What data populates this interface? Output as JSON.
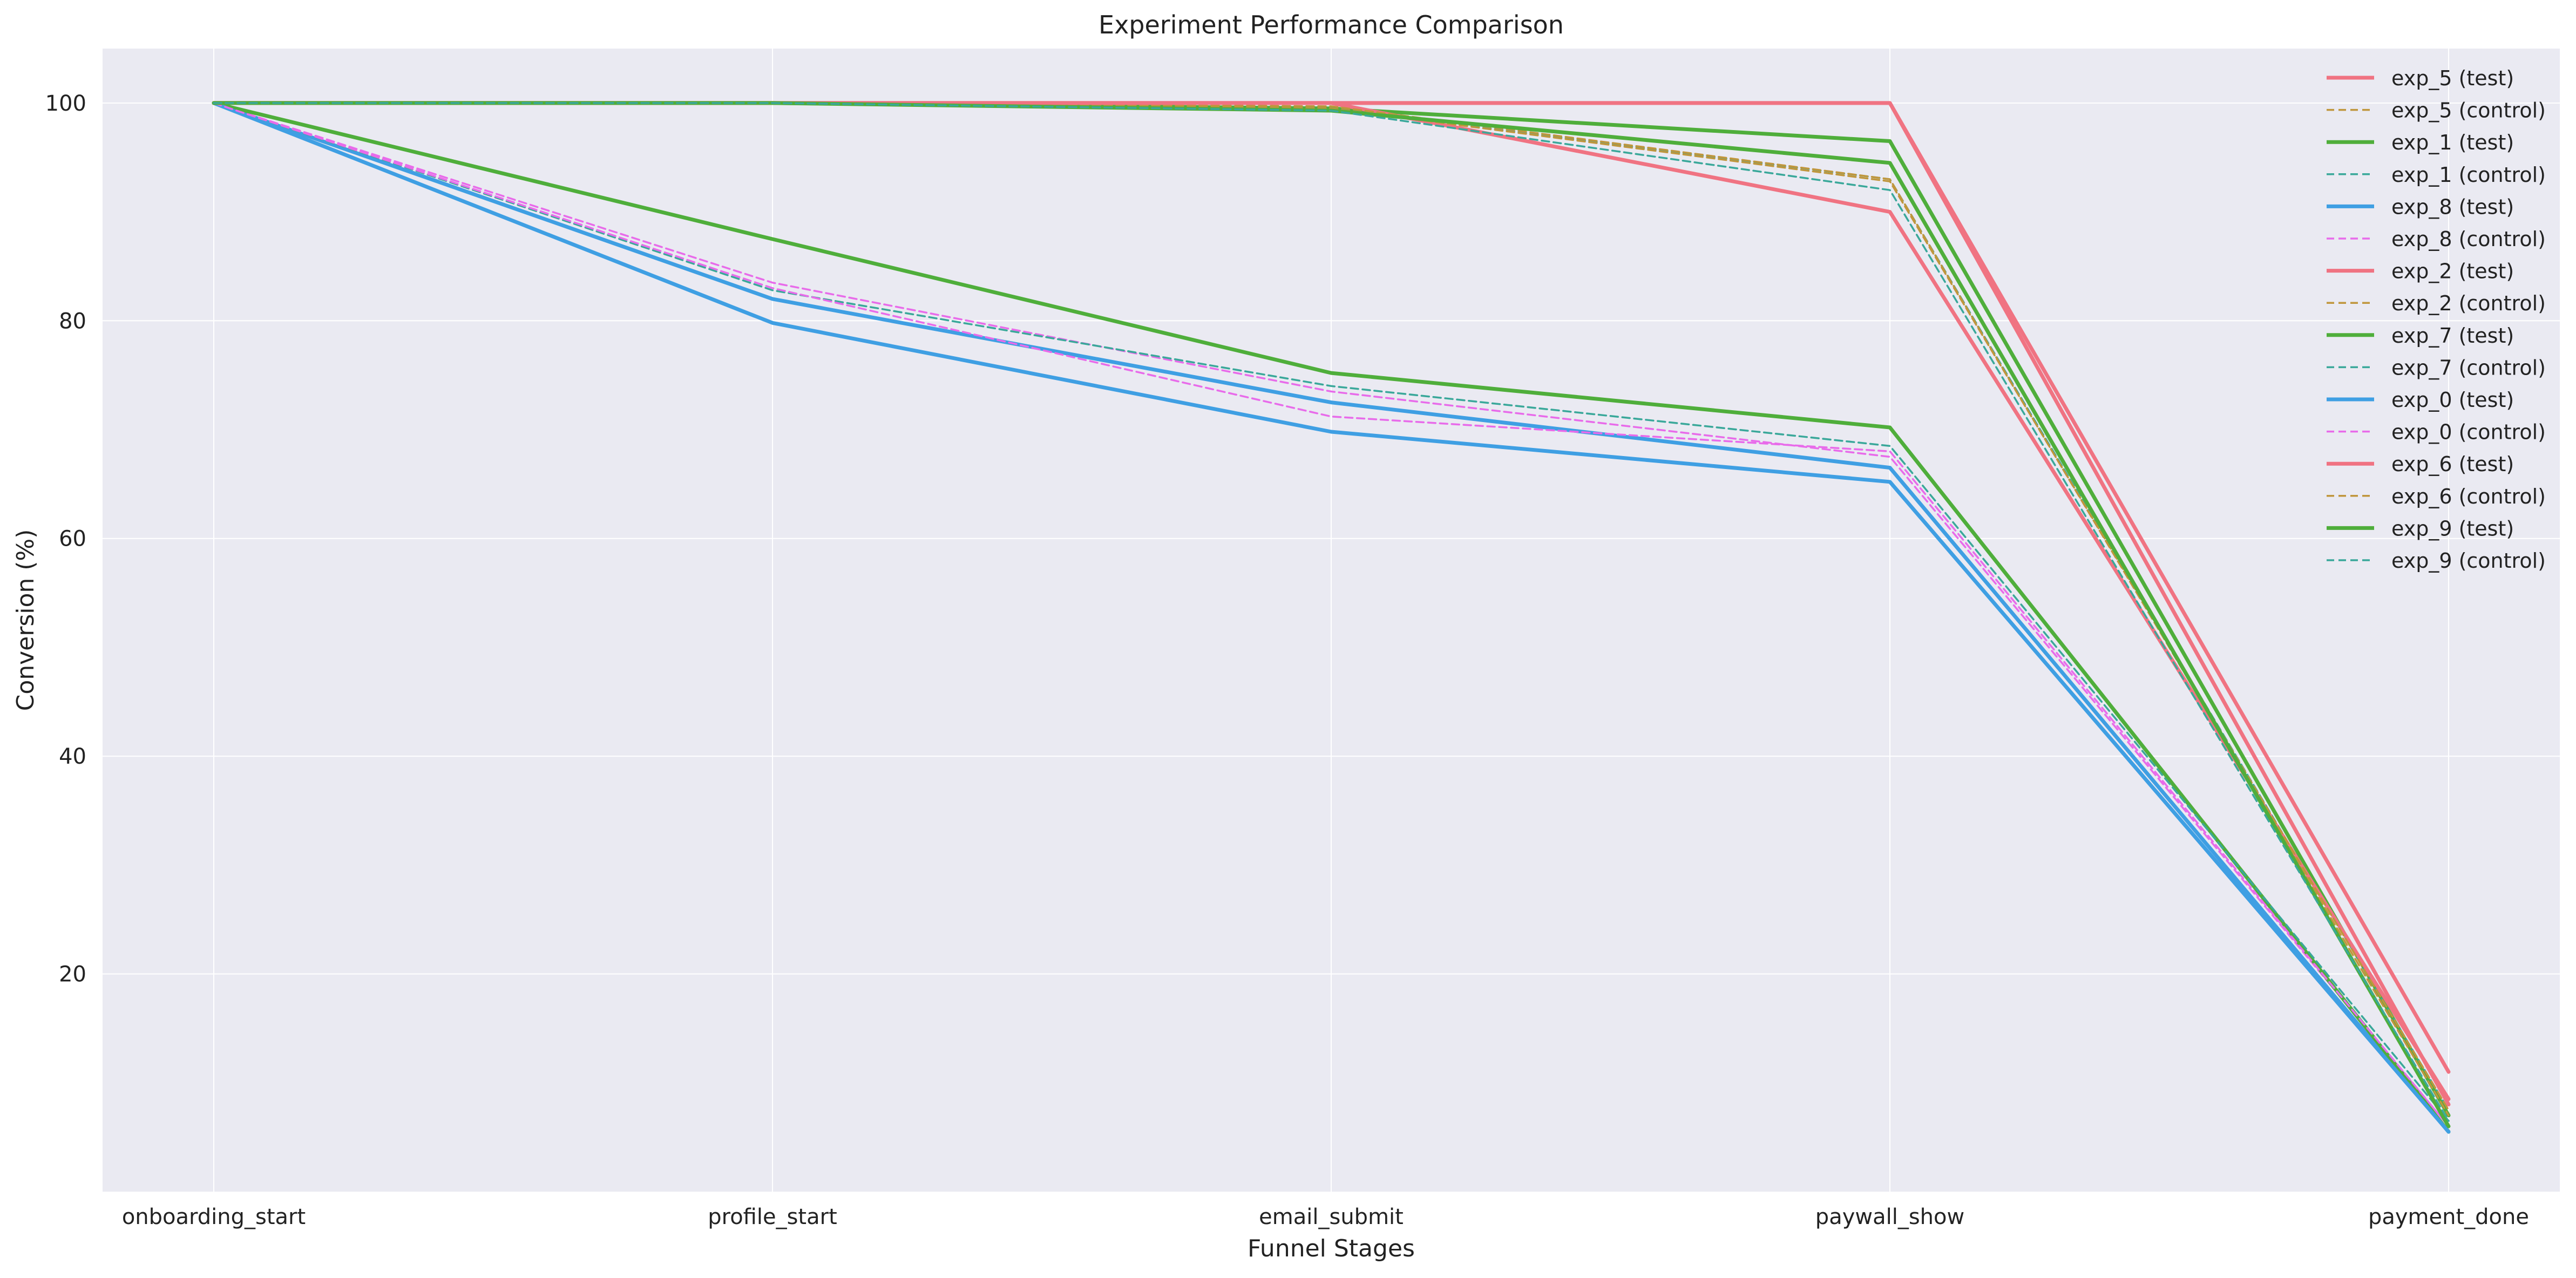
{
  "chart_data": {
    "type": "line",
    "title": "Experiment Performance Comparison",
    "xlabel": "Funnel Stages",
    "ylabel": "Conversion (%)",
    "categories": [
      "onboarding_start",
      "profile_start",
      "email_submit",
      "paywall_show",
      "payment_done"
    ],
    "ylim": [
      0,
      105
    ],
    "yticks": [
      20,
      40,
      60,
      80,
      100
    ],
    "grid": true,
    "legend_position": "top-right",
    "series": [
      {
        "name": "exp_5 (test)",
        "color": "#f07382",
        "dash": false,
        "values": [
          100,
          100,
          100,
          100,
          11.0
        ]
      },
      {
        "name": "exp_5 (control)",
        "color": "#c0963c",
        "dash": true,
        "values": [
          100,
          100,
          100,
          100,
          8.0
        ]
      },
      {
        "name": "exp_1 (test)",
        "color": "#4fae3b",
        "dash": false,
        "values": [
          100,
          100,
          99.5,
          96.5,
          7.0
        ]
      },
      {
        "name": "exp_1 (control)",
        "color": "#3aa89a",
        "dash": true,
        "values": [
          100,
          100,
          99.5,
          93.0,
          7.5
        ]
      },
      {
        "name": "exp_8 (test)",
        "color": "#3f9fe3",
        "dash": false,
        "values": [
          100,
          82.0,
          72.5,
          66.5,
          5.5
        ]
      },
      {
        "name": "exp_8 (control)",
        "color": "#e86bea",
        "dash": true,
        "values": [
          100,
          83.5,
          73.5,
          67.5,
          6.0
        ]
      },
      {
        "name": "exp_2 (test)",
        "color": "#f07382",
        "dash": false,
        "values": [
          100,
          100,
          100,
          90.0,
          8.5
        ]
      },
      {
        "name": "exp_2 (control)",
        "color": "#c0963c",
        "dash": true,
        "values": [
          100,
          100,
          99.7,
          93.0,
          7.0
        ]
      },
      {
        "name": "exp_7 (test)",
        "color": "#4fae3b",
        "dash": false,
        "values": [
          100,
          87.5,
          75.2,
          70.2,
          5.5
        ]
      },
      {
        "name": "exp_7 (control)",
        "color": "#3aa89a",
        "dash": true,
        "values": [
          100,
          82.8,
          74.0,
          68.5,
          6.5
        ]
      },
      {
        "name": "exp_0 (test)",
        "color": "#3f9fe3",
        "dash": false,
        "values": [
          100,
          79.8,
          69.8,
          65.2,
          5.5
        ]
      },
      {
        "name": "exp_0 (control)",
        "color": "#e86bea",
        "dash": true,
        "values": [
          100,
          83.0,
          71.2,
          68.0,
          6.0
        ]
      },
      {
        "name": "exp_6 (test)",
        "color": "#f07382",
        "dash": false,
        "values": [
          100,
          100,
          100,
          100,
          8.0
        ]
      },
      {
        "name": "exp_6 (control)",
        "color": "#c0963c",
        "dash": true,
        "values": [
          100,
          100,
          99.5,
          92.8,
          7.5
        ]
      },
      {
        "name": "exp_9 (test)",
        "color": "#4fae3b",
        "dash": false,
        "values": [
          100,
          100,
          99.3,
          94.5,
          6.0
        ]
      },
      {
        "name": "exp_9 (control)",
        "color": "#3aa89a",
        "dash": true,
        "values": [
          100,
          100,
          99.3,
          92.0,
          6.5
        ]
      }
    ]
  }
}
